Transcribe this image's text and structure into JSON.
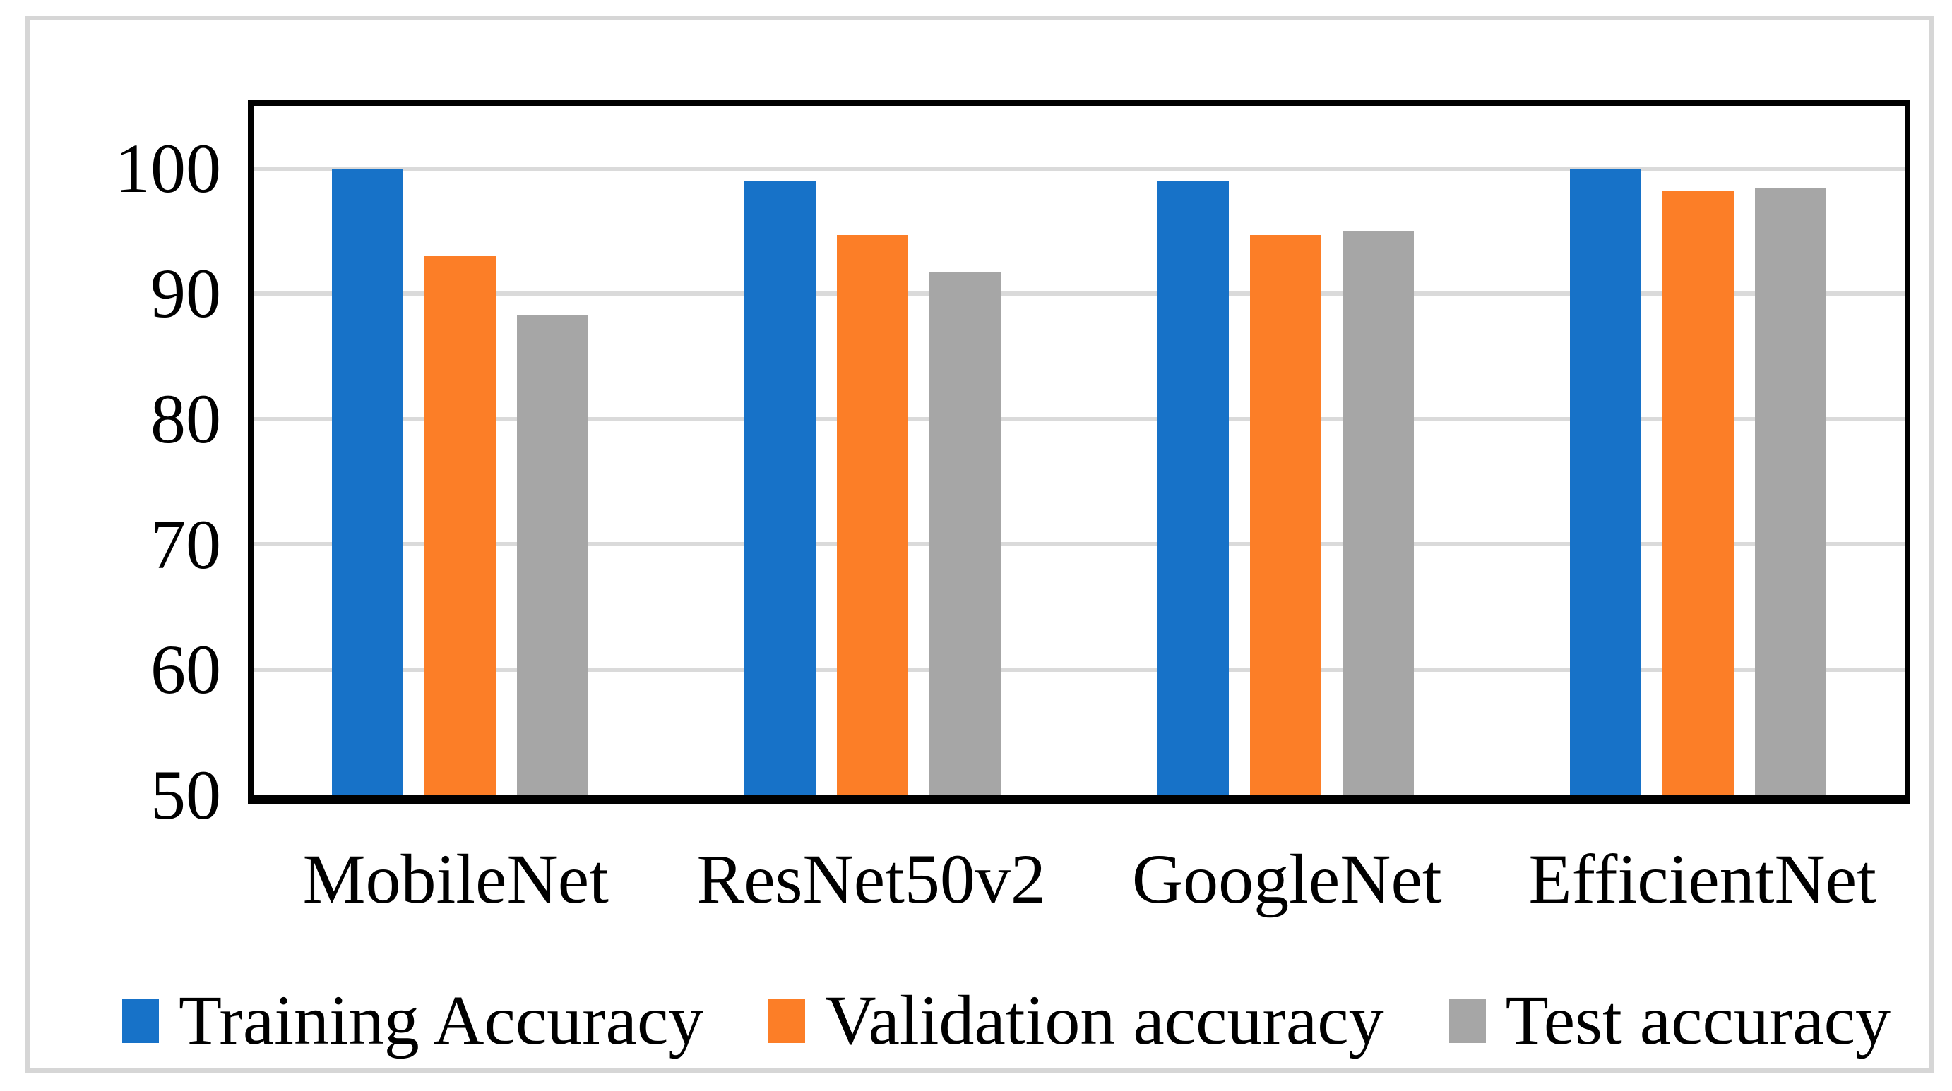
{
  "figure": {
    "background_color": "#ffffff",
    "frame_color": "#d6d6d6",
    "plot_border_color": "#000000"
  },
  "chart_data": {
    "type": "bar",
    "title": "",
    "xlabel": "",
    "ylabel": "",
    "categories": [
      "MobileNet",
      "ResNet50v2",
      "GoogleNet",
      "EfficientNet"
    ],
    "series": [
      {
        "name": "Training Accuracy",
        "color": "#1772c8",
        "values": [
          100,
          99,
          99,
          100
        ]
      },
      {
        "name": "Validation accuracy",
        "color": "#fc7e27",
        "values": [
          93,
          94.7,
          94.7,
          98.2
        ]
      },
      {
        "name": "Test accuracy",
        "color": "#a6a6a6",
        "values": [
          88.3,
          91.7,
          95,
          98.4
        ]
      }
    ],
    "ylim": [
      50,
      105
    ],
    "yticks": [
      50,
      60,
      70,
      80,
      90,
      100
    ],
    "grid": true,
    "gridline_color": "#dadada",
    "legend_position": "bottom"
  }
}
